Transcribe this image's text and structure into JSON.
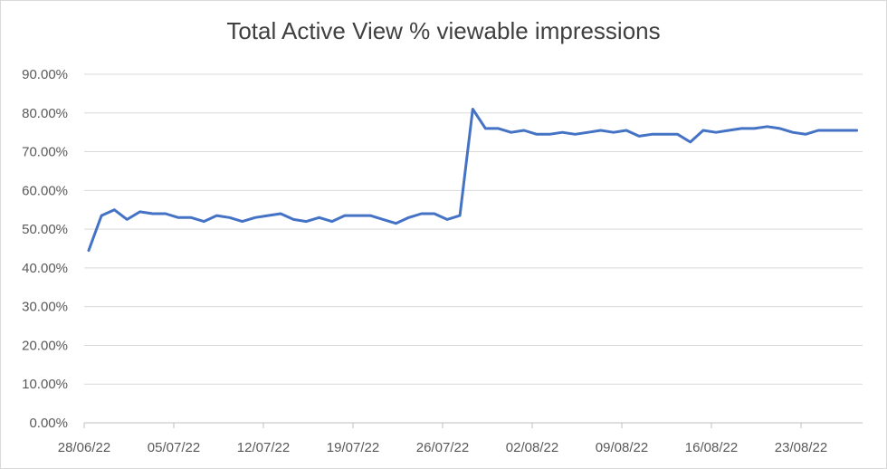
{
  "chart_data": {
    "type": "line",
    "title": "Total Active View % viewable impressions",
    "xlabel": "",
    "ylabel": "",
    "ylim": [
      0,
      90
    ],
    "y_ticks": [
      "0.00%",
      "10.00%",
      "20.00%",
      "30.00%",
      "40.00%",
      "50.00%",
      "60.00%",
      "70.00%",
      "80.00%",
      "90.00%"
    ],
    "x_ticks": [
      "28/06/22",
      "05/07/22",
      "12/07/22",
      "19/07/22",
      "26/07/22",
      "02/08/22",
      "09/08/22",
      "16/08/22",
      "23/08/22"
    ],
    "grid": true,
    "legend": "none",
    "line_color": "#4472C4",
    "series": [
      {
        "values": [
          44.5,
          53.5,
          55.0,
          52.5,
          54.5,
          54.0,
          54.0,
          53.0,
          53.0,
          52.0,
          53.5,
          53.0,
          52.0,
          53.0,
          53.5,
          54.0,
          52.5,
          52.0,
          53.0,
          52.0,
          53.5,
          53.5,
          53.5,
          52.5,
          51.5,
          53.0,
          54.0,
          54.0,
          52.5,
          53.5,
          81.0,
          76.0,
          76.0,
          75.0,
          75.5,
          74.5,
          74.5,
          75.0,
          74.5,
          75.0,
          75.5,
          75.0,
          75.5,
          74.0,
          74.5,
          74.5,
          74.5,
          72.5,
          75.5,
          75.0,
          75.5,
          76.0,
          76.0,
          76.5,
          76.0,
          75.0,
          74.5,
          75.5,
          75.5,
          75.5,
          75.5
        ]
      }
    ]
  }
}
